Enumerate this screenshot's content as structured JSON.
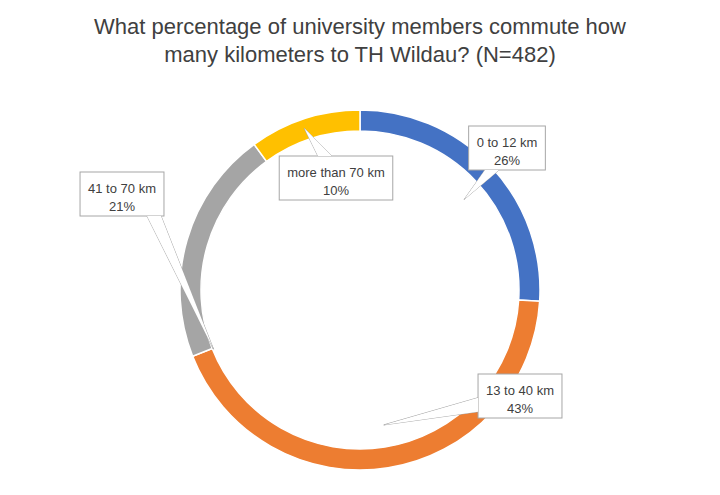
{
  "chart_data": {
    "type": "donut",
    "title": "What percentage of university members commute how many kilometers to TH Wildau? (N=482)",
    "categories": [
      "0 to 12 km",
      "13 to 40 km",
      "41 to 70 km",
      "more than 70 km"
    ],
    "values": [
      26,
      43,
      21,
      10
    ],
    "value_labels": [
      "26%",
      "43%",
      "21%",
      "10%"
    ],
    "colors": [
      "#4472c4",
      "#ed7d31",
      "#a5a5a5",
      "#ffc000"
    ],
    "data_labels": true
  }
}
